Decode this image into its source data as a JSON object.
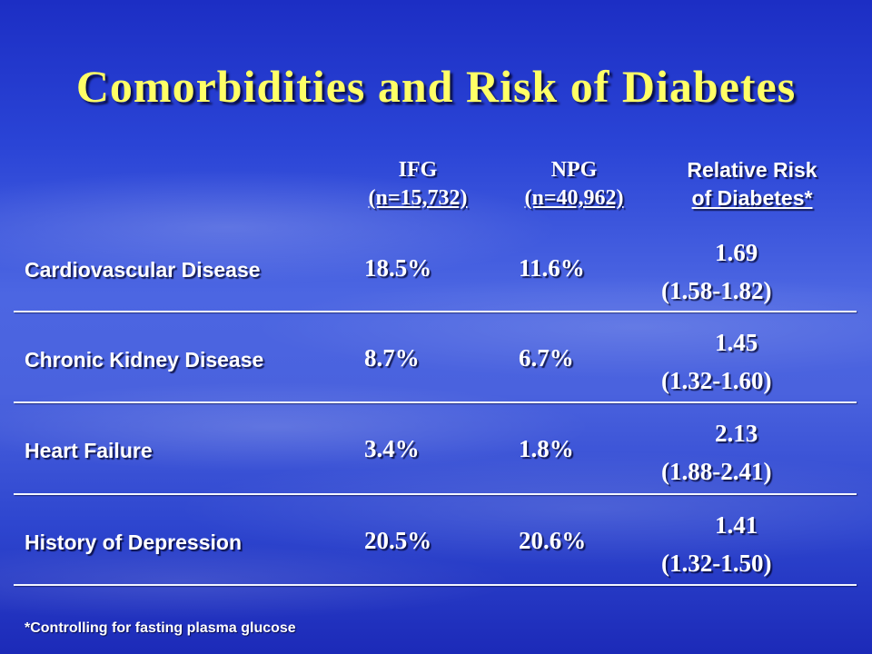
{
  "title": "Comorbidities and Risk of Diabetes",
  "columns": {
    "ifg": {
      "line1": "IFG",
      "line2": "(n=15,732)"
    },
    "npg": {
      "line1": "NPG",
      "line2": "(n=40,962)"
    },
    "rr": {
      "line1": "Relative Risk",
      "line2": "of Diabetes*"
    }
  },
  "rows": [
    {
      "label": "Cardiovascular Disease",
      "ifg": "18.5%",
      "npg": "11.6%",
      "rr": "1.69",
      "ci": "(1.58-1.82)"
    },
    {
      "label": "Chronic Kidney Disease",
      "ifg": "8.7%",
      "npg": "6.7%",
      "rr": "1.45",
      "ci": "(1.32-1.60)"
    },
    {
      "label": "Heart Failure",
      "ifg": "3.4%",
      "npg": "1.8%",
      "rr": "2.13",
      "ci": "(1.88-2.41)"
    },
    {
      "label": "History of Depression",
      "ifg": "20.5%",
      "npg": "20.6%",
      "rr": "1.41",
      "ci": "(1.32-1.50)"
    }
  ],
  "footnote": "*Controlling for fasting plasma glucose"
}
